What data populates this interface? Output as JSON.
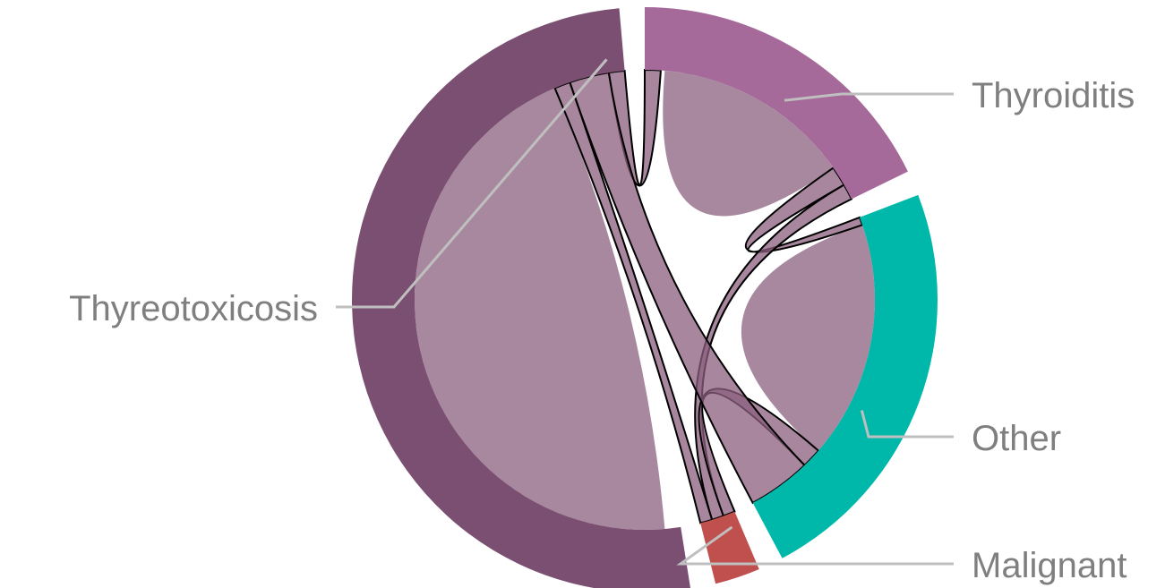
{
  "chart_data": {
    "type": "chord",
    "title": "",
    "categories": [
      {
        "name": "Thyroiditis",
        "color": "#a66a9a"
      },
      {
        "name": "Other",
        "color": "#00b8a9"
      },
      {
        "name": "Malignant",
        "color": "#c0504d"
      },
      {
        "name": "Thyreotoxicosis",
        "color": "#7b4f72"
      }
    ],
    "arc_extent_degrees": {
      "Thyroiditis": 64,
      "Other": 83,
      "Malignant": 9,
      "Thyreotoxicosis": 184
    },
    "chords": [
      {
        "from": "Thyroiditis",
        "to": "Thyroiditis"
      },
      {
        "from": "Thyroiditis",
        "to": "Other"
      },
      {
        "from": "Thyroiditis",
        "to": "Malignant"
      },
      {
        "from": "Thyroiditis",
        "to": "Thyreotoxicosis"
      },
      {
        "from": "Other",
        "to": "Other"
      },
      {
        "from": "Other",
        "to": "Malignant"
      },
      {
        "from": "Other",
        "to": "Thyreotoxicosis"
      },
      {
        "from": "Malignant",
        "to": "Thyreotoxicosis"
      },
      {
        "from": "Thyreotoxicosis",
        "to": "Thyreotoxicosis"
      }
    ],
    "style": {
      "label_color": "#7f7f7f",
      "leader_color": "#bfbfbf",
      "ribbon_color": "#8b5f7e",
      "ribbon_self_color": "#a8889f",
      "ribbon_stroke": "#000000"
    }
  }
}
